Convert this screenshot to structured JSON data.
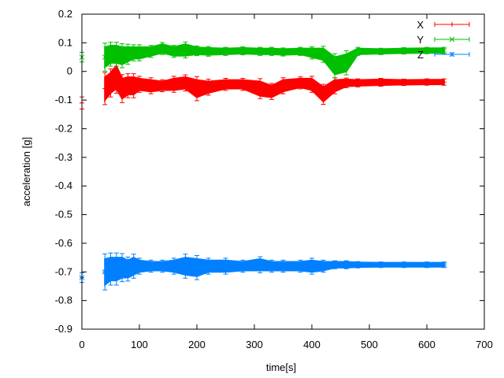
{
  "chart_data": {
    "type": "line",
    "title": "",
    "xlabel": "time[s]",
    "ylabel": "acceleration [g]",
    "xlim": [
      0,
      700
    ],
    "ylim": [
      -0.9,
      0.2
    ],
    "xticks": [
      0,
      100,
      200,
      300,
      400,
      500,
      600,
      700
    ],
    "yticks": [
      0.2,
      0.1,
      0,
      -0.1,
      -0.2,
      -0.3,
      -0.4,
      -0.5,
      -0.6,
      -0.7,
      -0.8,
      -0.9
    ],
    "ytick_labels": [
      "0.2",
      "0.1",
      "0",
      "-0.1",
      "-0.2",
      "-0.3",
      "-0.4",
      "-0.5",
      "-0.6",
      "-0.7",
      "-0.8",
      "-0.9"
    ],
    "grid": false,
    "legend_placement": "top-right",
    "x": [
      0,
      40,
      50,
      60,
      70,
      80,
      90,
      100,
      120,
      140,
      160,
      180,
      200,
      220,
      250,
      280,
      310,
      330,
      350,
      380,
      400,
      420,
      440,
      460,
      480,
      520,
      560,
      600,
      630
    ],
    "series": [
      {
        "name": "X",
        "color": "#ff0000",
        "marker": "plus",
        "values": [
          -0.11,
          -0.06,
          -0.04,
          -0.02,
          -0.06,
          -0.05,
          -0.05,
          -0.045,
          -0.05,
          -0.05,
          -0.045,
          -0.04,
          -0.06,
          -0.055,
          -0.045,
          -0.045,
          -0.06,
          -0.07,
          -0.05,
          -0.04,
          -0.045,
          -0.08,
          -0.05,
          -0.04,
          -0.04,
          -0.038,
          -0.038,
          -0.037,
          -0.037
        ],
        "errors": [
          0.015,
          0.04,
          0.035,
          0.04,
          0.035,
          0.03,
          0.03,
          0.02,
          0.02,
          0.015,
          0.02,
          0.02,
          0.03,
          0.02,
          0.015,
          0.015,
          0.025,
          0.02,
          0.02,
          0.015,
          0.02,
          0.025,
          0.02,
          0.012,
          0.01,
          0.01,
          0.008,
          0.008,
          0.008
        ]
      },
      {
        "name": "Y",
        "color": "#00c000",
        "marker": "cross",
        "values": [
          0.05,
          0.05,
          0.06,
          0.06,
          0.055,
          0.06,
          0.065,
          0.065,
          0.07,
          0.08,
          0.07,
          0.075,
          0.072,
          0.07,
          0.07,
          0.072,
          0.07,
          0.07,
          0.068,
          0.07,
          0.065,
          0.06,
          0.02,
          0.03,
          0.07,
          0.07,
          0.072,
          0.073,
          0.073
        ],
        "errors": [
          0.012,
          0.035,
          0.03,
          0.03,
          0.03,
          0.025,
          0.02,
          0.02,
          0.015,
          0.015,
          0.015,
          0.02,
          0.012,
          0.012,
          0.01,
          0.01,
          0.01,
          0.01,
          0.01,
          0.01,
          0.015,
          0.02,
          0.03,
          0.03,
          0.01,
          0.008,
          0.008,
          0.008,
          0.008
        ]
      },
      {
        "name": "Z",
        "color": "#0080ff",
        "marker": "star",
        "values": [
          -0.72,
          -0.7,
          -0.69,
          -0.69,
          -0.685,
          -0.69,
          -0.68,
          -0.68,
          -0.68,
          -0.68,
          -0.68,
          -0.68,
          -0.685,
          -0.68,
          -0.68,
          -0.68,
          -0.675,
          -0.68,
          -0.68,
          -0.68,
          -0.68,
          -0.68,
          -0.675,
          -0.675,
          -0.675,
          -0.675,
          -0.675,
          -0.675,
          -0.675
        ],
        "errors": [
          0.012,
          0.045,
          0.04,
          0.04,
          0.035,
          0.03,
          0.03,
          0.02,
          0.015,
          0.015,
          0.02,
          0.03,
          0.03,
          0.02,
          0.02,
          0.015,
          0.02,
          0.015,
          0.015,
          0.015,
          0.02,
          0.015,
          0.01,
          0.01,
          0.008,
          0.007,
          0.007,
          0.007,
          0.007
        ]
      }
    ]
  }
}
